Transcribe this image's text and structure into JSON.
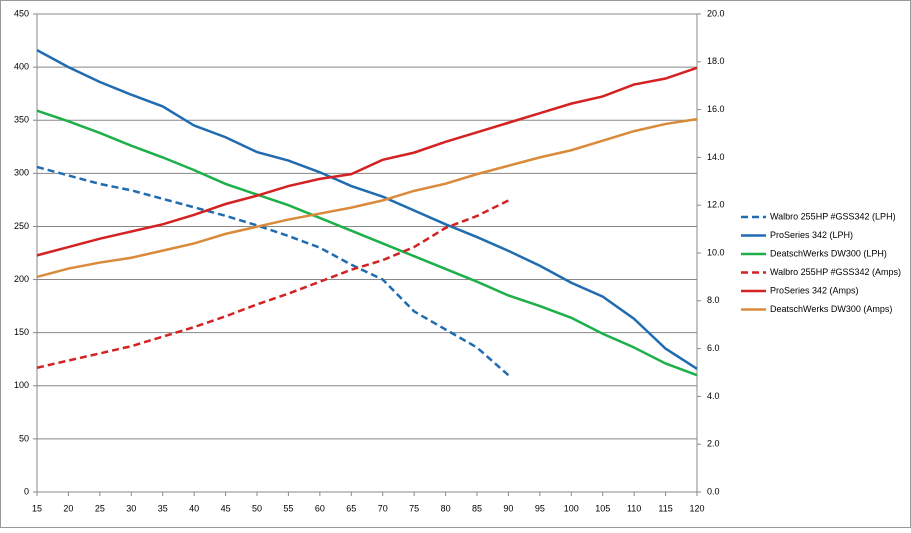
{
  "chart_data": {
    "type": "line",
    "x": [
      15,
      20,
      25,
      30,
      35,
      40,
      45,
      50,
      55,
      60,
      65,
      70,
      75,
      80,
      85,
      90,
      95,
      100,
      105,
      110,
      115,
      120
    ],
    "xlim": [
      15,
      120
    ],
    "xticks": [
      15,
      20,
      25,
      30,
      35,
      40,
      45,
      50,
      55,
      60,
      65,
      70,
      75,
      80,
      85,
      90,
      95,
      100,
      105,
      110,
      115,
      120
    ],
    "ylim": [
      0,
      450
    ],
    "yticks": [
      0,
      50,
      100,
      150,
      200,
      250,
      300,
      350,
      400,
      450
    ],
    "y2lim": [
      0,
      20
    ],
    "y2ticks": [
      {
        "value": 0,
        "label": "0.0"
      },
      {
        "value": 2,
        "label": "2.0"
      },
      {
        "value": 4,
        "label": "4.0"
      },
      {
        "value": 6,
        "label": "6.0"
      },
      {
        "value": 8,
        "label": "8.0"
      },
      {
        "value": 10,
        "label": "10.0"
      },
      {
        "value": 12,
        "label": "12.0"
      },
      {
        "value": 14,
        "label": "14.0"
      },
      {
        "value": 16,
        "label": "16.0"
      },
      {
        "value": 18,
        "label": "18.0"
      },
      {
        "value": 20,
        "label": "20.0"
      }
    ],
    "grid": true,
    "legend": "right",
    "series": [
      {
        "name": "Walbro 255HP #GSS342 (LPH)",
        "color": "#1f6cb0",
        "dashed": true,
        "values": [
          306,
          298,
          290,
          284,
          276,
          268,
          260,
          251,
          241,
          230,
          214,
          200,
          170,
          153,
          136,
          110,
          null,
          null,
          null,
          null,
          null,
          null
        ]
      },
      {
        "name": "ProSeries 342 (LPH)",
        "color": "#1f6cb0",
        "dashed": false,
        "values": [
          416,
          400,
          386,
          374,
          363,
          345,
          334,
          320,
          312,
          301,
          288,
          278,
          265,
          252,
          240,
          227,
          213,
          197,
          184,
          163,
          135,
          116
        ]
      },
      {
        "name": "DeatschWerks DW300 (LPH)",
        "color": "#1db04a",
        "dashed": false,
        "values": [
          359,
          349,
          338,
          326,
          315,
          303,
          290,
          280,
          270,
          258,
          246,
          234,
          222,
          210,
          198,
          185,
          175,
          164,
          149,
          136,
          121,
          110
        ]
      },
      {
        "name": "Walbro 255HP #GSS342 (Amps)",
        "color": "#d42222",
        "dashed": true,
        "axis": "y2",
        "values": [
          5.2,
          5.5,
          5.8,
          6.1,
          6.5,
          6.9,
          7.35,
          7.85,
          8.3,
          8.8,
          9.3,
          9.7,
          10.25,
          11.05,
          11.55,
          12.2,
          null,
          null,
          null,
          null,
          null,
          null
        ]
      },
      {
        "name": "ProSeries 342 (Amps)",
        "color": "#d42222",
        "dashed": false,
        "axis": "y2",
        "values": [
          9.9,
          10.25,
          10.6,
          10.9,
          11.2,
          11.6,
          12.05,
          12.4,
          12.8,
          13.1,
          13.3,
          13.9,
          14.2,
          14.65,
          15.05,
          15.45,
          15.85,
          16.25,
          16.55,
          17.05,
          17.3,
          17.75
        ]
      },
      {
        "name": "DeatschWerks DW300 (Amps)",
        "color": "#d98a3a",
        "dashed": false,
        "axis": "y2",
        "values": [
          9.0,
          9.35,
          9.6,
          9.8,
          10.1,
          10.4,
          10.8,
          11.1,
          11.4,
          11.65,
          11.9,
          12.2,
          12.6,
          12.9,
          13.3,
          13.65,
          14.0,
          14.3,
          14.7,
          15.1,
          15.4,
          15.6
        ]
      }
    ]
  }
}
